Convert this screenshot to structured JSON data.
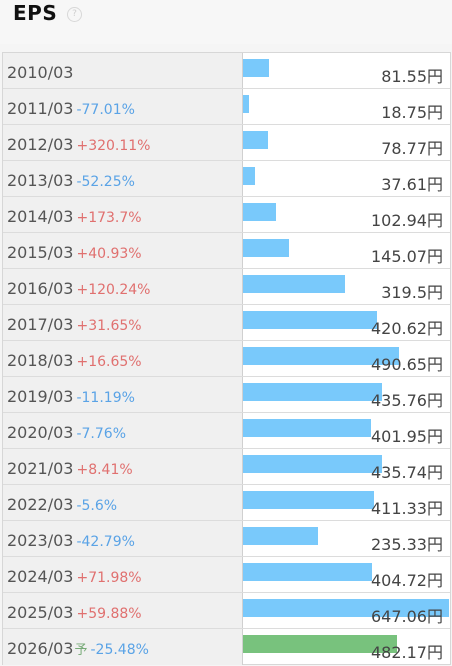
{
  "title": "EPS",
  "help_icon": "question-circle-icon",
  "colors": {
    "actual_bar": "#79c9fb",
    "forecast_bar": "#78c27d",
    "increase": "#e0706f",
    "decrease": "#5aa3e6"
  },
  "rows": [
    {
      "period": "2010/03",
      "change": "",
      "direction": "",
      "value": "81.55円",
      "eps": 81.55,
      "forecast": false
    },
    {
      "period": "2011/03",
      "change": "-77.01%",
      "direction": "down",
      "value": "18.75円",
      "eps": 18.75,
      "forecast": false
    },
    {
      "period": "2012/03",
      "change": "+320.11%",
      "direction": "up",
      "value": "78.77円",
      "eps": 78.77,
      "forecast": false
    },
    {
      "period": "2013/03",
      "change": "-52.25%",
      "direction": "down",
      "value": "37.61円",
      "eps": 37.61,
      "forecast": false
    },
    {
      "period": "2014/03",
      "change": "+173.7%",
      "direction": "up",
      "value": "102.94円",
      "eps": 102.94,
      "forecast": false
    },
    {
      "period": "2015/03",
      "change": "+40.93%",
      "direction": "up",
      "value": "145.07円",
      "eps": 145.07,
      "forecast": false
    },
    {
      "period": "2016/03",
      "change": "+120.24%",
      "direction": "up",
      "value": "319.5円",
      "eps": 319.5,
      "forecast": false
    },
    {
      "period": "2017/03",
      "change": "+31.65%",
      "direction": "up",
      "value": "420.62円",
      "eps": 420.62,
      "forecast": false
    },
    {
      "period": "2018/03",
      "change": "+16.65%",
      "direction": "up",
      "value": "490.65円",
      "eps": 490.65,
      "forecast": false
    },
    {
      "period": "2019/03",
      "change": "-11.19%",
      "direction": "down",
      "value": "435.76円",
      "eps": 435.76,
      "forecast": false
    },
    {
      "period": "2020/03",
      "change": "-7.76%",
      "direction": "down",
      "value": "401.95円",
      "eps": 401.95,
      "forecast": false
    },
    {
      "period": "2021/03",
      "change": "+8.41%",
      "direction": "up",
      "value": "435.74円",
      "eps": 435.74,
      "forecast": false
    },
    {
      "period": "2022/03",
      "change": "-5.6%",
      "direction": "down",
      "value": "411.33円",
      "eps": 411.33,
      "forecast": false
    },
    {
      "period": "2023/03",
      "change": "-42.79%",
      "direction": "down",
      "value": "235.33円",
      "eps": 235.33,
      "forecast": false
    },
    {
      "period": "2024/03",
      "change": "+71.98%",
      "direction": "up",
      "value": "404.72円",
      "eps": 404.72,
      "forecast": false
    },
    {
      "period": "2025/03",
      "change": "+59.88%",
      "direction": "up",
      "value": "647.06円",
      "eps": 647.06,
      "forecast": false
    },
    {
      "period": "2026/03",
      "forecast_mark": "予",
      "change": "-25.48%",
      "direction": "down",
      "value": "482.17円",
      "eps": 482.17,
      "forecast": true
    }
  ]
}
